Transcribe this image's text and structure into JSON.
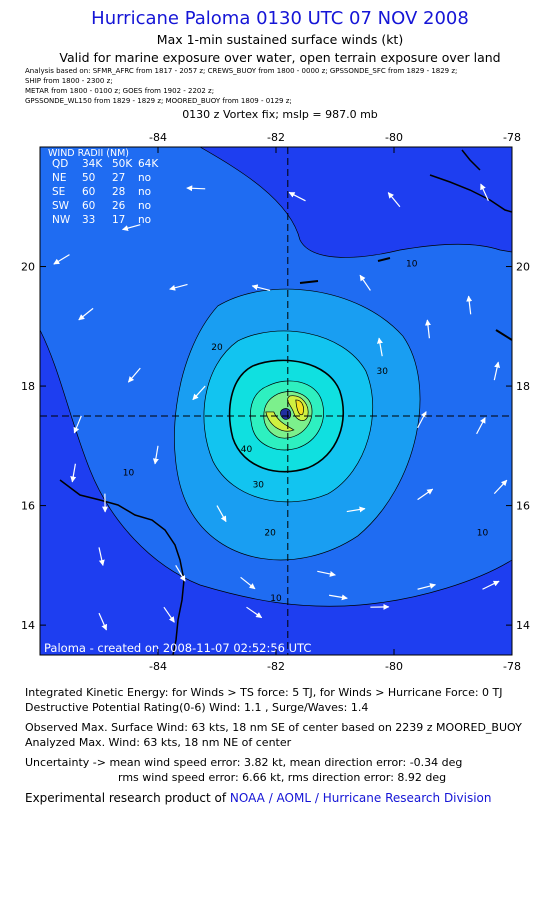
{
  "header": {
    "title": "Hurricane Paloma 0130 UTC 07 NOV 2008",
    "subtitle": "Max 1-min sustained surface winds (kt)",
    "valid_for": "Valid for marine exposure over water, open terrain exposure over land"
  },
  "analysis_sources": [
    "Analysis based on:  SFMR_AFRC from 1817 - 2057 z;   CREWS_BUOY from 1800 - 0000 z;   GPSSONDE_SFC from 1829 - 1829 z;",
    "SHIP from 1800 - 2300 z;",
    "METAR from 1800 - 0100 z;   GOES from 1902 - 2202 z;",
    "GPSSONDE_WL150 from 1829 - 1829 z;   MOORED_BUOY from 1809 - 0129 z;"
  ],
  "vortex_fix": "0130 z Vortex fix; mslp = 987.0 mb",
  "wind_radii": {
    "title": "WIND RADII (NM)",
    "headers": [
      "QD",
      "34K",
      "50K",
      "64K"
    ],
    "rows": [
      [
        "NE",
        "50",
        "27",
        "no"
      ],
      [
        "SE",
        "60",
        "28",
        "no"
      ],
      [
        "SW",
        "60",
        "26",
        "no"
      ],
      [
        "NW",
        "33",
        "17",
        "no"
      ]
    ]
  },
  "map_credit": "Paloma - created on 2008-11-07 02:52:56 UTC",
  "colors": {
    "contour_levels": [
      "#1e3ef0",
      "#1f6cf2",
      "#199ef2",
      "#12c4f0",
      "#10e0e0",
      "#2ef0c0",
      "#7cf08c",
      "#d0f040",
      "#f6e020",
      "#2030a0"
    ],
    "land": "#000000",
    "title_blue": "#1515d6"
  },
  "chart_data": {
    "type": "contour",
    "title": "Hurricane Paloma 0130 UTC 07 NOV 2008",
    "quantity": "Max 1-min sustained surface winds (kt)",
    "x_axis": {
      "range": [
        -86,
        -78
      ],
      "ticks": [
        -84,
        -82,
        -80,
        -78
      ],
      "tick_labels": [
        "-84",
        "-82",
        "-80",
        "-78"
      ]
    },
    "y_axis": {
      "range": [
        13.5,
        22
      ],
      "ticks": [
        14,
        16,
        18,
        20
      ],
      "tick_labels": [
        "14",
        "16",
        "18",
        "20"
      ]
    },
    "center": {
      "lon": -81.8,
      "lat": 17.5
    },
    "contour_labels": [
      {
        "value": "10",
        "lon": -84.5,
        "lat": 16.5
      },
      {
        "value": "10",
        "lon": -79.7,
        "lat": 20.0
      },
      {
        "value": "10",
        "lon": -78.5,
        "lat": 15.5
      },
      {
        "value": "10",
        "lon": -82.0,
        "lat": 14.4
      },
      {
        "value": "20",
        "lon": -83.0,
        "lat": 18.6
      },
      {
        "value": "20",
        "lon": -82.1,
        "lat": 15.5
      },
      {
        "value": "30",
        "lon": -80.2,
        "lat": 18.2
      },
      {
        "value": "30",
        "lon": -82.3,
        "lat": 16.3
      },
      {
        "value": "40",
        "lon": -82.5,
        "lat": 16.9
      }
    ],
    "max_wind_kt": 63,
    "crosshair": {
      "lon": -81.8,
      "lat": 17.5
    }
  },
  "info": {
    "ike": "Integrated Kinetic Energy:  for Winds > TS force: 5 TJ,  for Winds > Hurricane Force: 0 TJ",
    "dpr": "Destructive Potential Rating(0-6)   Wind: 1.1 , Surge/Waves: 1.4",
    "observed": "Observed Max. Surface Wind: 63 kts, 18 nm SE of center based on 2239 z MOORED_BUOY",
    "analyzed": "Analyzed Max. Wind: 63 kts, 18 nm NE of center",
    "uncertainty1": "Uncertainty -> mean wind speed error: 3.82 kt,   mean direction error:  -0.34 deg",
    "uncertainty2": "rms wind speed error: 6.66 kt,   rms direction error: 8.92 deg",
    "credit_prefix": "Experimental research product of ",
    "credit_link": "NOAA / AOML / Hurricane Research Division"
  }
}
